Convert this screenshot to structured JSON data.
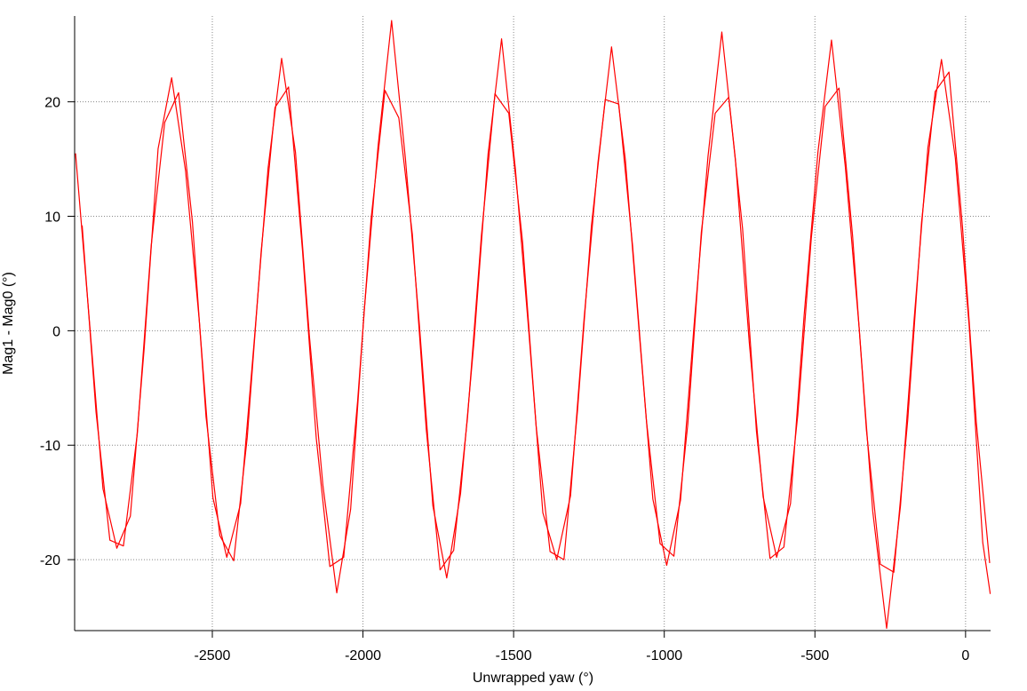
{
  "chart_data": {
    "type": "line",
    "x_label": "Unwrapped yaw (°)",
    "y_label": "Mag1 - Mag0 (°)",
    "xlim": [
      -2957,
      83
    ],
    "ylim": [
      -26.2,
      27.5
    ],
    "xticks": [
      -2500,
      -2000,
      -1500,
      -1000,
      -500,
      0
    ],
    "yticks": [
      -20,
      -10,
      0,
      10,
      20
    ],
    "grid": true,
    "series": [
      {
        "color": "#ff0000",
        "x": [
          -2954,
          -2909,
          -2863,
          -2817,
          -2772,
          -2726,
          -2680,
          -2635,
          -2589,
          -2543,
          -2498,
          -2452,
          -2406,
          -2361,
          -2315,
          -2270,
          -2224,
          -2178,
          -2133,
          -2087,
          -2041,
          -1996,
          -1950,
          -1905,
          -1859,
          -1813,
          -1768,
          -1722,
          -1676,
          -1631,
          -1585,
          -1540,
          -1494,
          -1448,
          -1403,
          -1357,
          -1311,
          -1266,
          -1220,
          -1175,
          -1129,
          -1083,
          -1038,
          -992,
          -946,
          -901,
          -855,
          -809,
          -764,
          -718,
          -672,
          -627,
          -581,
          -536,
          -490,
          -445,
          -399,
          -353,
          -308,
          -262,
          -216,
          -171,
          -125,
          -80,
          -34,
          12,
          57,
          82
        ],
        "values": [
          15.5,
          1.2,
          -13.8,
          -19.0,
          -16.2,
          -1.5,
          15.9,
          22.1,
          14.0,
          0.8,
          -14.6,
          -19.8,
          -15.1,
          -0.9,
          14.2,
          23.8,
          15.6,
          -0.4,
          -13.5,
          -22.9,
          -15.6,
          1.7,
          16.1,
          27.1,
          15.0,
          0.6,
          -15.3,
          -21.6,
          -14.2,
          -0.8,
          15.4,
          25.5,
          14.1,
          -0.6,
          -15.9,
          -20.0,
          -14.4,
          1.1,
          14.7,
          24.8,
          14.9,
          -0.2,
          -14.7,
          -20.5,
          -14.8,
          0.5,
          15.2,
          26.1,
          15.0,
          -1.0,
          -14.5,
          -19.8,
          -15.1,
          1.3,
          15.6,
          25.4,
          14.3,
          0.2,
          -15.8,
          -26.0,
          -15.3,
          0.9,
          16.0,
          23.7,
          15.1,
          0.4,
          -18.5,
          -23.0
        ]
      },
      {
        "color": "#ff0000",
        "x": [
          -2932,
          -2886,
          -2840,
          -2795,
          -2749,
          -2703,
          -2658,
          -2612,
          -2566,
          -2521,
          -2475,
          -2429,
          -2384,
          -2338,
          -2292,
          -2247,
          -2201,
          -2155,
          -2110,
          -2064,
          -2018,
          -1973,
          -1927,
          -1881,
          -1836,
          -1790,
          -1744,
          -1699,
          -1653,
          -1607,
          -1562,
          -1516,
          -1470,
          -1425,
          -1379,
          -1333,
          -1288,
          -1242,
          -1196,
          -1151,
          -1105,
          -1059,
          -1014,
          -968,
          -922,
          -877,
          -831,
          -786,
          -740,
          -694,
          -649,
          -603,
          -557,
          -512,
          -466,
          -420,
          -375,
          -329,
          -283,
          -238,
          -192,
          -146,
          -101,
          -55,
          -10,
          36,
          80
        ],
        "values": [
          9.2,
          -7.1,
          -18.3,
          -18.8,
          -9.0,
          7.4,
          18.2,
          20.8,
          9.5,
          -7.5,
          -17.9,
          -20.1,
          -9.3,
          6.9,
          19.5,
          21.3,
          7.1,
          -9.4,
          -20.6,
          -19.8,
          -6.2,
          9.8,
          21.0,
          18.6,
          8.4,
          -8.6,
          -20.9,
          -19.2,
          -7.6,
          8.3,
          20.7,
          19.0,
          7.7,
          -8.4,
          -19.3,
          -20.0,
          -7.0,
          9.1,
          20.2,
          19.8,
          7.4,
          -7.9,
          -18.6,
          -19.7,
          -8.2,
          8.6,
          19.0,
          20.4,
          8.9,
          -8.8,
          -19.9,
          -18.9,
          -7.4,
          8.1,
          19.6,
          21.2,
          8.3,
          -8.7,
          -20.4,
          -21.1,
          -7.8,
          9.5,
          20.9,
          22.6,
          9.0,
          -8.1,
          -20.3
        ]
      }
    ]
  }
}
